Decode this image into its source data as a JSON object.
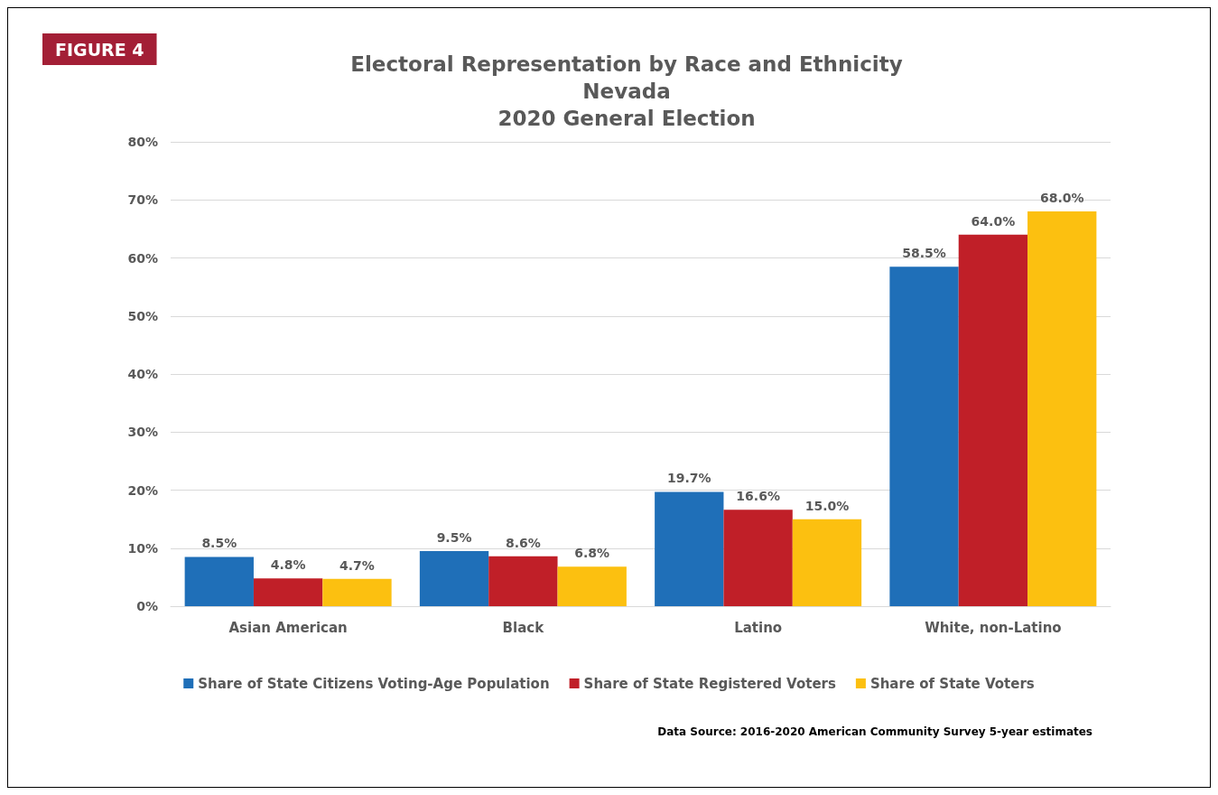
{
  "chart_data": {
    "type": "bar",
    "title": "Electoral Representation by Race and Ethnicity\nNevada\n2020 General Election",
    "categories": [
      "Asian American",
      "Black",
      "Latino",
      "White, non-Latino"
    ],
    "series": [
      {
        "name": "Share of State Citizens Voting-Age Population",
        "color": "#1f6fb8",
        "values": [
          8.5,
          9.5,
          19.7,
          58.5
        ],
        "value_labels": [
          "8.5%",
          "9.5%",
          "19.7%",
          "58.5%"
        ]
      },
      {
        "name": "Share of State Registered Voters",
        "color": "#c01f28",
        "values": [
          4.8,
          8.6,
          16.6,
          64.0
        ],
        "value_labels": [
          "4.8%",
          "8.6%",
          "16.6%",
          "64.0%"
        ]
      },
      {
        "name": "Share of State Voters",
        "color": "#fcc010",
        "values": [
          4.7,
          6.8,
          15.0,
          68.0
        ],
        "value_labels": [
          "4.7%",
          "6.8%",
          "15.0%",
          "68.0%"
        ]
      }
    ],
    "ylim": [
      0,
      80
    ],
    "yticks": [
      {
        "value": 0,
        "label": "0%"
      },
      {
        "value": 10,
        "label": "10%"
      },
      {
        "value": 20,
        "label": "20%"
      },
      {
        "value": 30,
        "label": "30%"
      },
      {
        "value": 40,
        "label": "40%"
      },
      {
        "value": 50,
        "label": "50%"
      },
      {
        "value": 60,
        "label": "60%"
      },
      {
        "value": 70,
        "label": "70%"
      },
      {
        "value": 80,
        "label": "80%"
      }
    ],
    "grid": "y",
    "legend": "bottom",
    "annotations": [
      "FIGURE 4",
      "Data Source: 2016-2020 American Community Survey 5-year estimates"
    ]
  }
}
